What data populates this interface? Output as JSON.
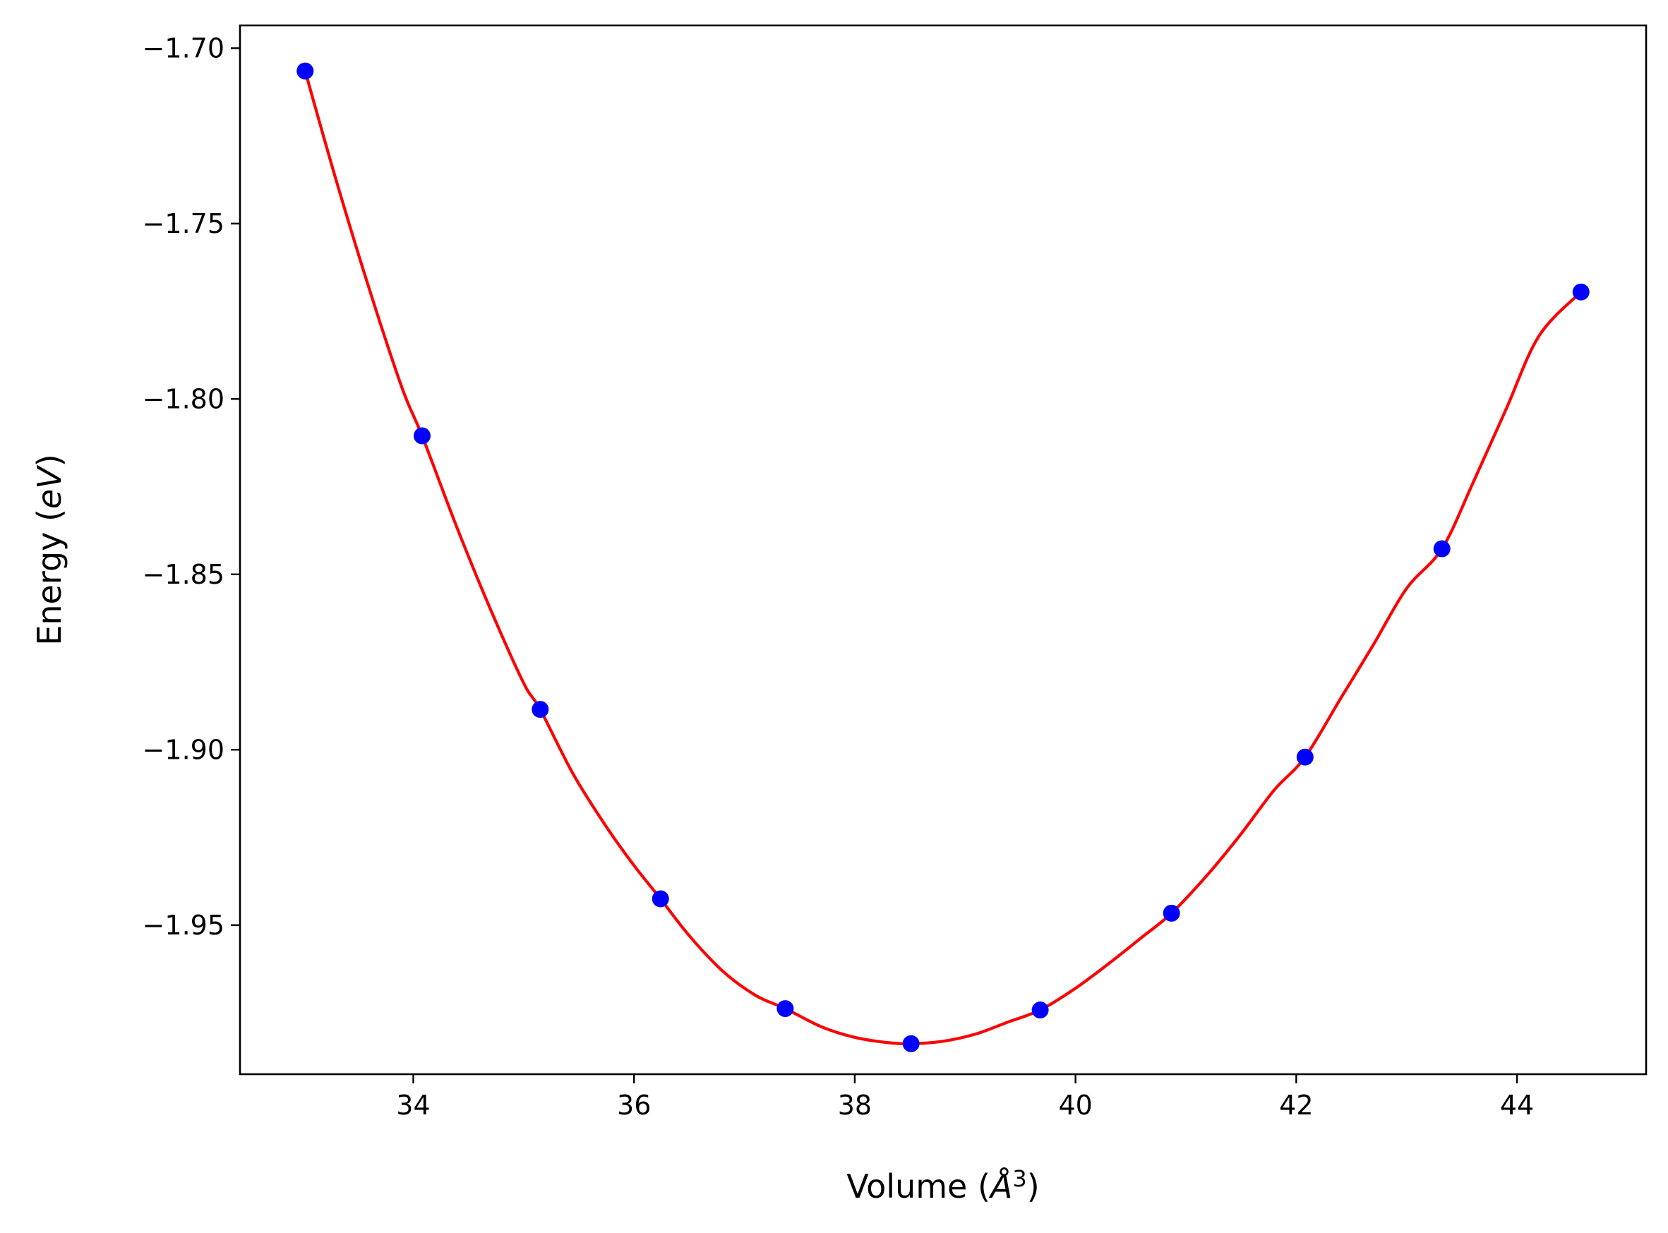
{
  "chart_data": {
    "type": "line",
    "title": "",
    "xlabel": "Volume",
    "xlabel_unit_prefix": "(",
    "xlabel_unit_symbol": "Å",
    "xlabel_unit_superscript": "3",
    "xlabel_unit_suffix": ")",
    "ylabel": "Energy",
    "ylabel_unit_prefix": "(",
    "ylabel_unit_italic": "eV",
    "ylabel_unit_suffix": ")",
    "xlim": [
      32.43,
      45.17
    ],
    "ylim": [
      -1.9925,
      -1.6935
    ],
    "xticks": [
      34,
      36,
      38,
      40,
      42,
      44
    ],
    "xtick_labels": [
      "34",
      "36",
      "38",
      "40",
      "42",
      "44"
    ],
    "yticks": [
      -1.7,
      -1.75,
      -1.8,
      -1.85,
      -1.9,
      -1.95
    ],
    "ytick_labels": [
      "−1.70",
      "−1.75",
      "−1.80",
      "−1.85",
      "−1.90",
      "−1.95"
    ],
    "grid": false,
    "legend": "none",
    "series": [
      {
        "kind": "scatter",
        "color": "#0000ff",
        "marker": "circle",
        "x": [
          33.02,
          34.08,
          35.15,
          36.24,
          37.37,
          38.51,
          39.68,
          40.87,
          42.08,
          43.32,
          44.58
        ],
        "y": [
          -1.7065,
          -1.8105,
          -1.8885,
          -1.9425,
          -1.9738,
          -1.9838,
          -1.9742,
          -1.9466,
          -1.9021,
          -1.8427,
          -1.7695
        ]
      },
      {
        "kind": "line",
        "color": "#ff0000",
        "x": [
          33.02,
          33.3,
          33.6,
          33.9,
          34.08,
          34.4,
          34.7,
          35.0,
          35.15,
          35.45,
          35.75,
          36.0,
          36.24,
          36.5,
          36.8,
          37.1,
          37.37,
          37.7,
          38.0,
          38.3,
          38.51,
          38.8,
          39.1,
          39.4,
          39.68,
          40.0,
          40.3,
          40.6,
          40.87,
          41.2,
          41.5,
          41.8,
          42.08,
          42.4,
          42.7,
          43.0,
          43.32,
          43.6,
          43.9,
          44.2,
          44.58
        ],
        "y": [
          -1.7065,
          -1.7375,
          -1.7685,
          -1.797,
          -1.8105,
          -1.837,
          -1.86,
          -1.881,
          -1.8885,
          -1.907,
          -1.922,
          -1.933,
          -1.9425,
          -1.953,
          -1.963,
          -1.97,
          -1.9738,
          -1.979,
          -1.982,
          -1.9835,
          -1.9838,
          -1.9831,
          -1.981,
          -1.9775,
          -1.9742,
          -1.968,
          -1.961,
          -1.9535,
          -1.9466,
          -1.9355,
          -1.924,
          -1.9115,
          -1.9021,
          -1.8855,
          -1.87,
          -1.854,
          -1.8427,
          -1.824,
          -1.803,
          -1.782,
          -1.7695
        ]
      }
    ]
  }
}
